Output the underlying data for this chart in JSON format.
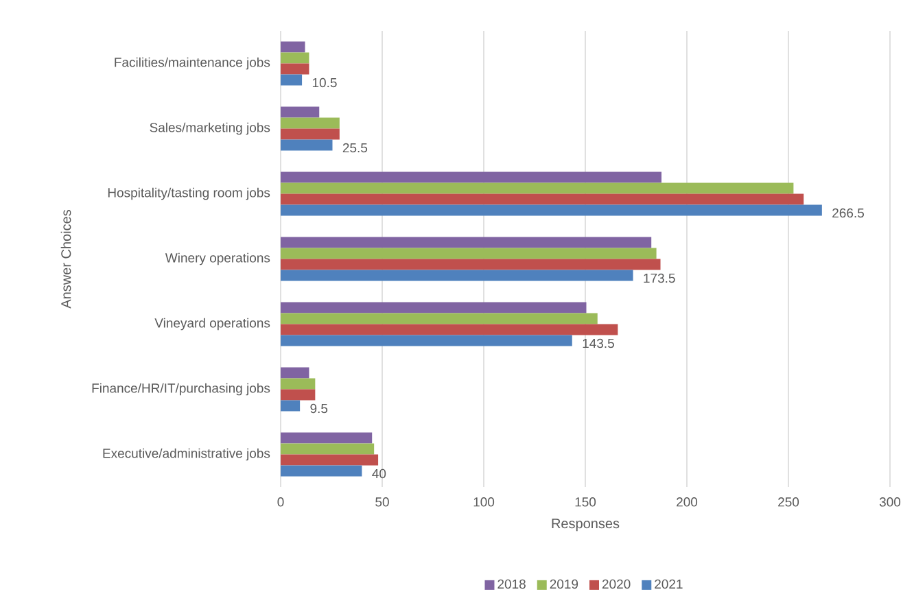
{
  "chart_data": {
    "type": "bar",
    "orientation": "horizontal",
    "xlabel": "Responses",
    "ylabel": "Answer Choices",
    "categories": [
      "Facilities/maintenance jobs",
      "Sales/marketing jobs",
      "Hospitality/tasting room jobs",
      "Winery operations",
      "Vineyard operations",
      "Finance/HR/IT/purchasing jobs",
      "Executive/administrative jobs"
    ],
    "series": [
      {
        "name": "2018",
        "color": "#8064a2",
        "values": [
          12,
          19,
          187.5,
          182.5,
          150.5,
          14,
          45
        ]
      },
      {
        "name": "2019",
        "color": "#9bbb59",
        "values": [
          14,
          29,
          252.5,
          185,
          156,
          17,
          46
        ]
      },
      {
        "name": "2020",
        "color": "#c0504d",
        "values": [
          14,
          29,
          257.5,
          187,
          166,
          17,
          48
        ]
      },
      {
        "name": "2021",
        "color": "#4f81bd",
        "values": [
          10.5,
          25.5,
          266.5,
          173.5,
          143.5,
          9.5,
          40
        ],
        "value_labels": [
          "10.5",
          "25.5",
          "266.5",
          "173.5",
          "143.5",
          "9.5",
          "40"
        ]
      }
    ],
    "xlim": [
      0,
      300
    ],
    "xticks": [
      0,
      50,
      100,
      150,
      200,
      250,
      300
    ],
    "grid": "x",
    "legend": "bottom"
  }
}
